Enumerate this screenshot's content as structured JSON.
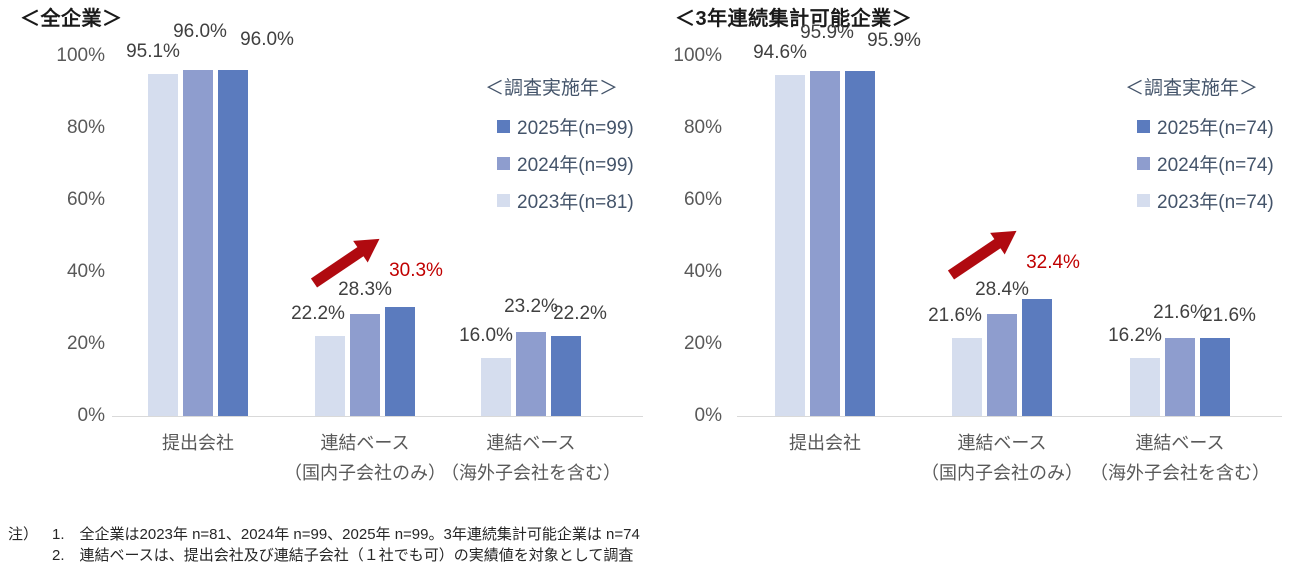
{
  "colors": {
    "bar_2023": "#d5ddee",
    "bar_2024": "#8e9dce",
    "bar_2025": "#5b7bbe",
    "red_accent": "#c00000",
    "arrow_red": "#b00a10",
    "axis_text": "#595959",
    "data_label_text": "#404040",
    "legend_text": "#44546a",
    "baseline": "#d9d9d9"
  },
  "chart_data": [
    {
      "type": "bar",
      "title": "＜全企業＞",
      "legend_title": "＜調査実施年＞",
      "legend_position": "upper-right",
      "grid": false,
      "ylim": [
        0,
        100
      ],
      "yticks": [
        "0%",
        "20%",
        "40%",
        "60%",
        "80%",
        "100%"
      ],
      "categories": [
        [
          "提出会社"
        ],
        [
          "連結ベース",
          "（国内子会社のみ）"
        ],
        [
          "連結ベース",
          "（海外子会社を含む）"
        ]
      ],
      "series": [
        {
          "name": "2023年(n=81)",
          "color": "#d5ddee",
          "values": [
            95.1,
            22.2,
            16.0
          ],
          "labels": [
            "95.1%",
            "22.2%",
            "16.0%"
          ]
        },
        {
          "name": "2024年(n=99)",
          "color": "#8e9dce",
          "values": [
            96.0,
            28.3,
            23.2
          ],
          "labels": [
            "96.0%",
            "28.3%",
            "23.2%"
          ]
        },
        {
          "name": "2025年(n=99)",
          "color": "#5b7bbe",
          "values": [
            96.0,
            30.3,
            22.2
          ],
          "labels": [
            "96.0%",
            "30.3%",
            "22.2%"
          ]
        }
      ],
      "highlight": {
        "category_index": 1,
        "series_index": 2,
        "label_color": "#c00000",
        "arrow": true
      }
    },
    {
      "type": "bar",
      "title": "＜3年連続集計可能企業＞",
      "legend_title": "＜調査実施年＞",
      "legend_position": "upper-right",
      "grid": false,
      "ylim": [
        0,
        100
      ],
      "yticks": [
        "0%",
        "20%",
        "40%",
        "60%",
        "80%",
        "100%"
      ],
      "categories": [
        [
          "提出会社"
        ],
        [
          "連結ベース",
          "（国内子会社のみ）"
        ],
        [
          "連結ベース",
          "（海外子会社を含む）"
        ]
      ],
      "series": [
        {
          "name": "2023年(n=74)",
          "color": "#d5ddee",
          "values": [
            94.6,
            21.6,
            16.2
          ],
          "labels": [
            "94.6%",
            "21.6%",
            "16.2%"
          ]
        },
        {
          "name": "2024年(n=74)",
          "color": "#8e9dce",
          "values": [
            95.9,
            28.4,
            21.6
          ],
          "labels": [
            "95.9%",
            "28.4%",
            "21.6%"
          ]
        },
        {
          "name": "2025年(n=74)",
          "color": "#5b7bbe",
          "values": [
            95.9,
            32.4,
            21.6
          ],
          "labels": [
            "95.9%",
            "32.4%",
            "21.6%"
          ]
        }
      ],
      "highlight": {
        "category_index": 1,
        "series_index": 2,
        "label_color": "#c00000",
        "arrow": true
      }
    }
  ],
  "notes": {
    "prefix": "注）",
    "items": [
      "1.　全企業は2023年 n=81、2024年 n=99、2025年 n=99。3年連続集計可能企業は n=74",
      "2.　連結ベースは、提出会社及び連結子会社（１社でも可）の実績値を対象として調査"
    ]
  }
}
